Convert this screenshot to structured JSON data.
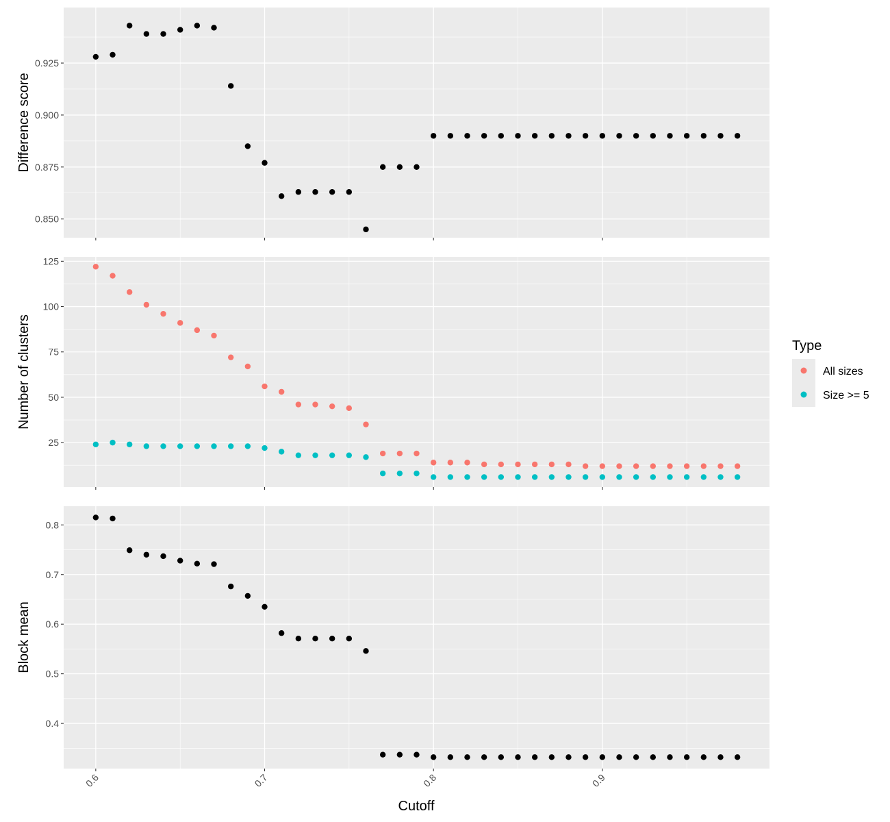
{
  "chart_data": {
    "type": "scatter",
    "x": [
      0.6,
      0.61,
      0.62,
      0.63,
      0.64,
      0.65,
      0.66,
      0.67,
      0.68,
      0.69,
      0.7,
      0.71,
      0.72,
      0.73,
      0.74,
      0.75,
      0.76,
      0.77,
      0.78,
      0.79,
      0.8,
      0.81,
      0.82,
      0.83,
      0.84,
      0.85,
      0.86,
      0.87,
      0.88,
      0.89,
      0.9,
      0.91,
      0.92,
      0.93,
      0.94,
      0.95,
      0.96,
      0.97,
      0.98
    ],
    "xlabel": "Cutoff",
    "xlim": [
      0.581,
      0.999
    ],
    "xticks": [
      0.6,
      0.7,
      0.8,
      0.9
    ],
    "xtick_labels": [
      "0.6",
      "0.7",
      "0.8",
      "0.9"
    ],
    "grid": true,
    "panels": [
      {
        "ylabel": "Difference score",
        "ylim": [
          0.841,
          0.9517
        ],
        "yticks": [
          0.85,
          0.875,
          0.9,
          0.925
        ],
        "ytick_labels": [
          "0.850",
          "0.875",
          "0.900",
          "0.925"
        ],
        "series": [
          {
            "color": "#000000",
            "values": [
              0.928,
              0.929,
              0.943,
              0.939,
              0.939,
              0.941,
              0.943,
              0.942,
              0.914,
              0.885,
              0.877,
              0.861,
              0.863,
              0.863,
              0.863,
              0.863,
              0.845,
              0.875,
              0.875,
              0.875,
              0.89,
              0.89,
              0.89,
              0.89,
              0.89,
              0.89,
              0.89,
              0.89,
              0.89,
              0.89,
              0.89,
              0.89,
              0.89,
              0.89,
              0.89,
              0.89,
              0.89,
              0.89,
              0.89
            ]
          }
        ]
      },
      {
        "ylabel": "Number of clusters",
        "ylim": [
          0.5,
          127.4
        ],
        "yticks": [
          25,
          50,
          75,
          100,
          125
        ],
        "ytick_labels": [
          "25",
          "50",
          "75",
          "100",
          "125"
        ],
        "series": [
          {
            "name": "All sizes",
            "color": "#F8766D",
            "values": [
              122,
              117,
              108,
              101,
              96,
              91,
              87,
              84,
              72,
              67,
              56,
              53,
              46,
              46,
              45,
              44,
              35,
              19,
              19,
              19,
              14,
              14,
              14,
              13,
              13,
              13,
              13,
              13,
              13,
              12,
              12,
              12,
              12,
              12,
              12,
              12,
              12,
              12,
              12
            ]
          },
          {
            "name": "Size >= 5",
            "color": "#00BFC4",
            "values": [
              24,
              25,
              24,
              23,
              23,
              23,
              23,
              23,
              23,
              23,
              22,
              20,
              18,
              18,
              18,
              18,
              17,
              8,
              8,
              8,
              6,
              6,
              6,
              6,
              6,
              6,
              6,
              6,
              6,
              6,
              6,
              6,
              6,
              6,
              6,
              6,
              6,
              6,
              6
            ]
          }
        ]
      },
      {
        "ylabel": "Block mean",
        "ylim": [
          0.309,
          0.8377
        ],
        "yticks": [
          0.4,
          0.5,
          0.6,
          0.7,
          0.8
        ],
        "ytick_labels": [
          "0.4",
          "0.5",
          "0.6",
          "0.7",
          "0.8"
        ],
        "series": [
          {
            "color": "#000000",
            "values": [
              0.815,
              0.813,
              0.749,
              0.74,
              0.737,
              0.728,
              0.722,
              0.721,
              0.676,
              0.657,
              0.635,
              0.582,
              0.571,
              0.571,
              0.571,
              0.571,
              0.546,
              0.337,
              0.337,
              0.337,
              0.332,
              0.332,
              0.332,
              0.332,
              0.332,
              0.332,
              0.332,
              0.332,
              0.332,
              0.332,
              0.332,
              0.332,
              0.332,
              0.332,
              0.332,
              0.332,
              0.332,
              0.332,
              0.332
            ]
          }
        ]
      }
    ],
    "legend": {
      "title": "Type",
      "placement": "right",
      "items": [
        {
          "label": "All sizes",
          "color": "#F8766D"
        },
        {
          "label": "Size >= 5",
          "color": "#00BFC4"
        }
      ]
    }
  }
}
